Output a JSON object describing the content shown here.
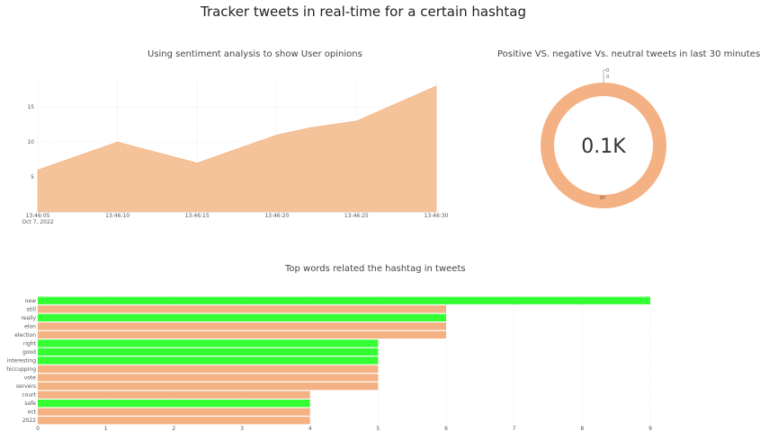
{
  "page": {
    "title": "Tracker tweets in real-time for a certain hashtag"
  },
  "colors": {
    "orange": "#F4B183",
    "orange_fill": "#F5C39A",
    "green": "#33FF33",
    "grid": "#D9D9D9"
  },
  "area_chart": {
    "title": "Using sentiment analysis to show User opinions",
    "date_label": "Oct 7, 2022"
  },
  "donut": {
    "title": "Positive VS. negative Vs. neutral tweets in last 30 minutes",
    "center_label": "0.1K",
    "small_labels": [
      "0",
      "0"
    ],
    "slice_label": "97"
  },
  "bar_chart": {
    "title": "Top words related the hashtag in tweets"
  },
  "chart_data": [
    {
      "type": "area",
      "title": "Using sentiment analysis to show User opinions",
      "x": [
        "13:46:05",
        "13:46:10",
        "13:46:15",
        "13:46:20",
        "13:46:25",
        "13:46:30"
      ],
      "x_points": [
        "13:46:05",
        "13:46:10",
        "13:46:15",
        "13:46:20",
        "13:46:22",
        "13:46:25",
        "13:46:30"
      ],
      "y_points": [
        6,
        10,
        7,
        11,
        12,
        13,
        18
      ],
      "ylim": [
        0,
        19
      ],
      "yticks": [
        5,
        10,
        15
      ],
      "grid": true
    },
    {
      "type": "pie",
      "title": "Positive VS. negative Vs. neutral tweets in last 30 minutes",
      "values": [
        97,
        0,
        0
      ],
      "center_label": "0.1K"
    },
    {
      "type": "bar",
      "orientation": "horizontal",
      "title": "Top words related the hashtag in tweets",
      "categories": [
        "new",
        "still",
        "really",
        "elon",
        "election",
        "right",
        "good",
        "interesting",
        "hiccupping",
        "vote",
        "servers",
        "court",
        "safe",
        "oct",
        "2022"
      ],
      "values": [
        9,
        6,
        6,
        6,
        6,
        5,
        5,
        5,
        5,
        5,
        5,
        4,
        4,
        4,
        4
      ],
      "bar_colors": [
        "green",
        "orange",
        "green",
        "orange",
        "orange",
        "green",
        "green",
        "green",
        "orange",
        "orange",
        "orange",
        "orange",
        "green",
        "orange",
        "orange"
      ],
      "xticks": [
        0,
        1,
        2,
        3,
        4,
        5,
        6,
        7,
        8,
        9
      ],
      "xlim": [
        0,
        9
      ]
    }
  ]
}
